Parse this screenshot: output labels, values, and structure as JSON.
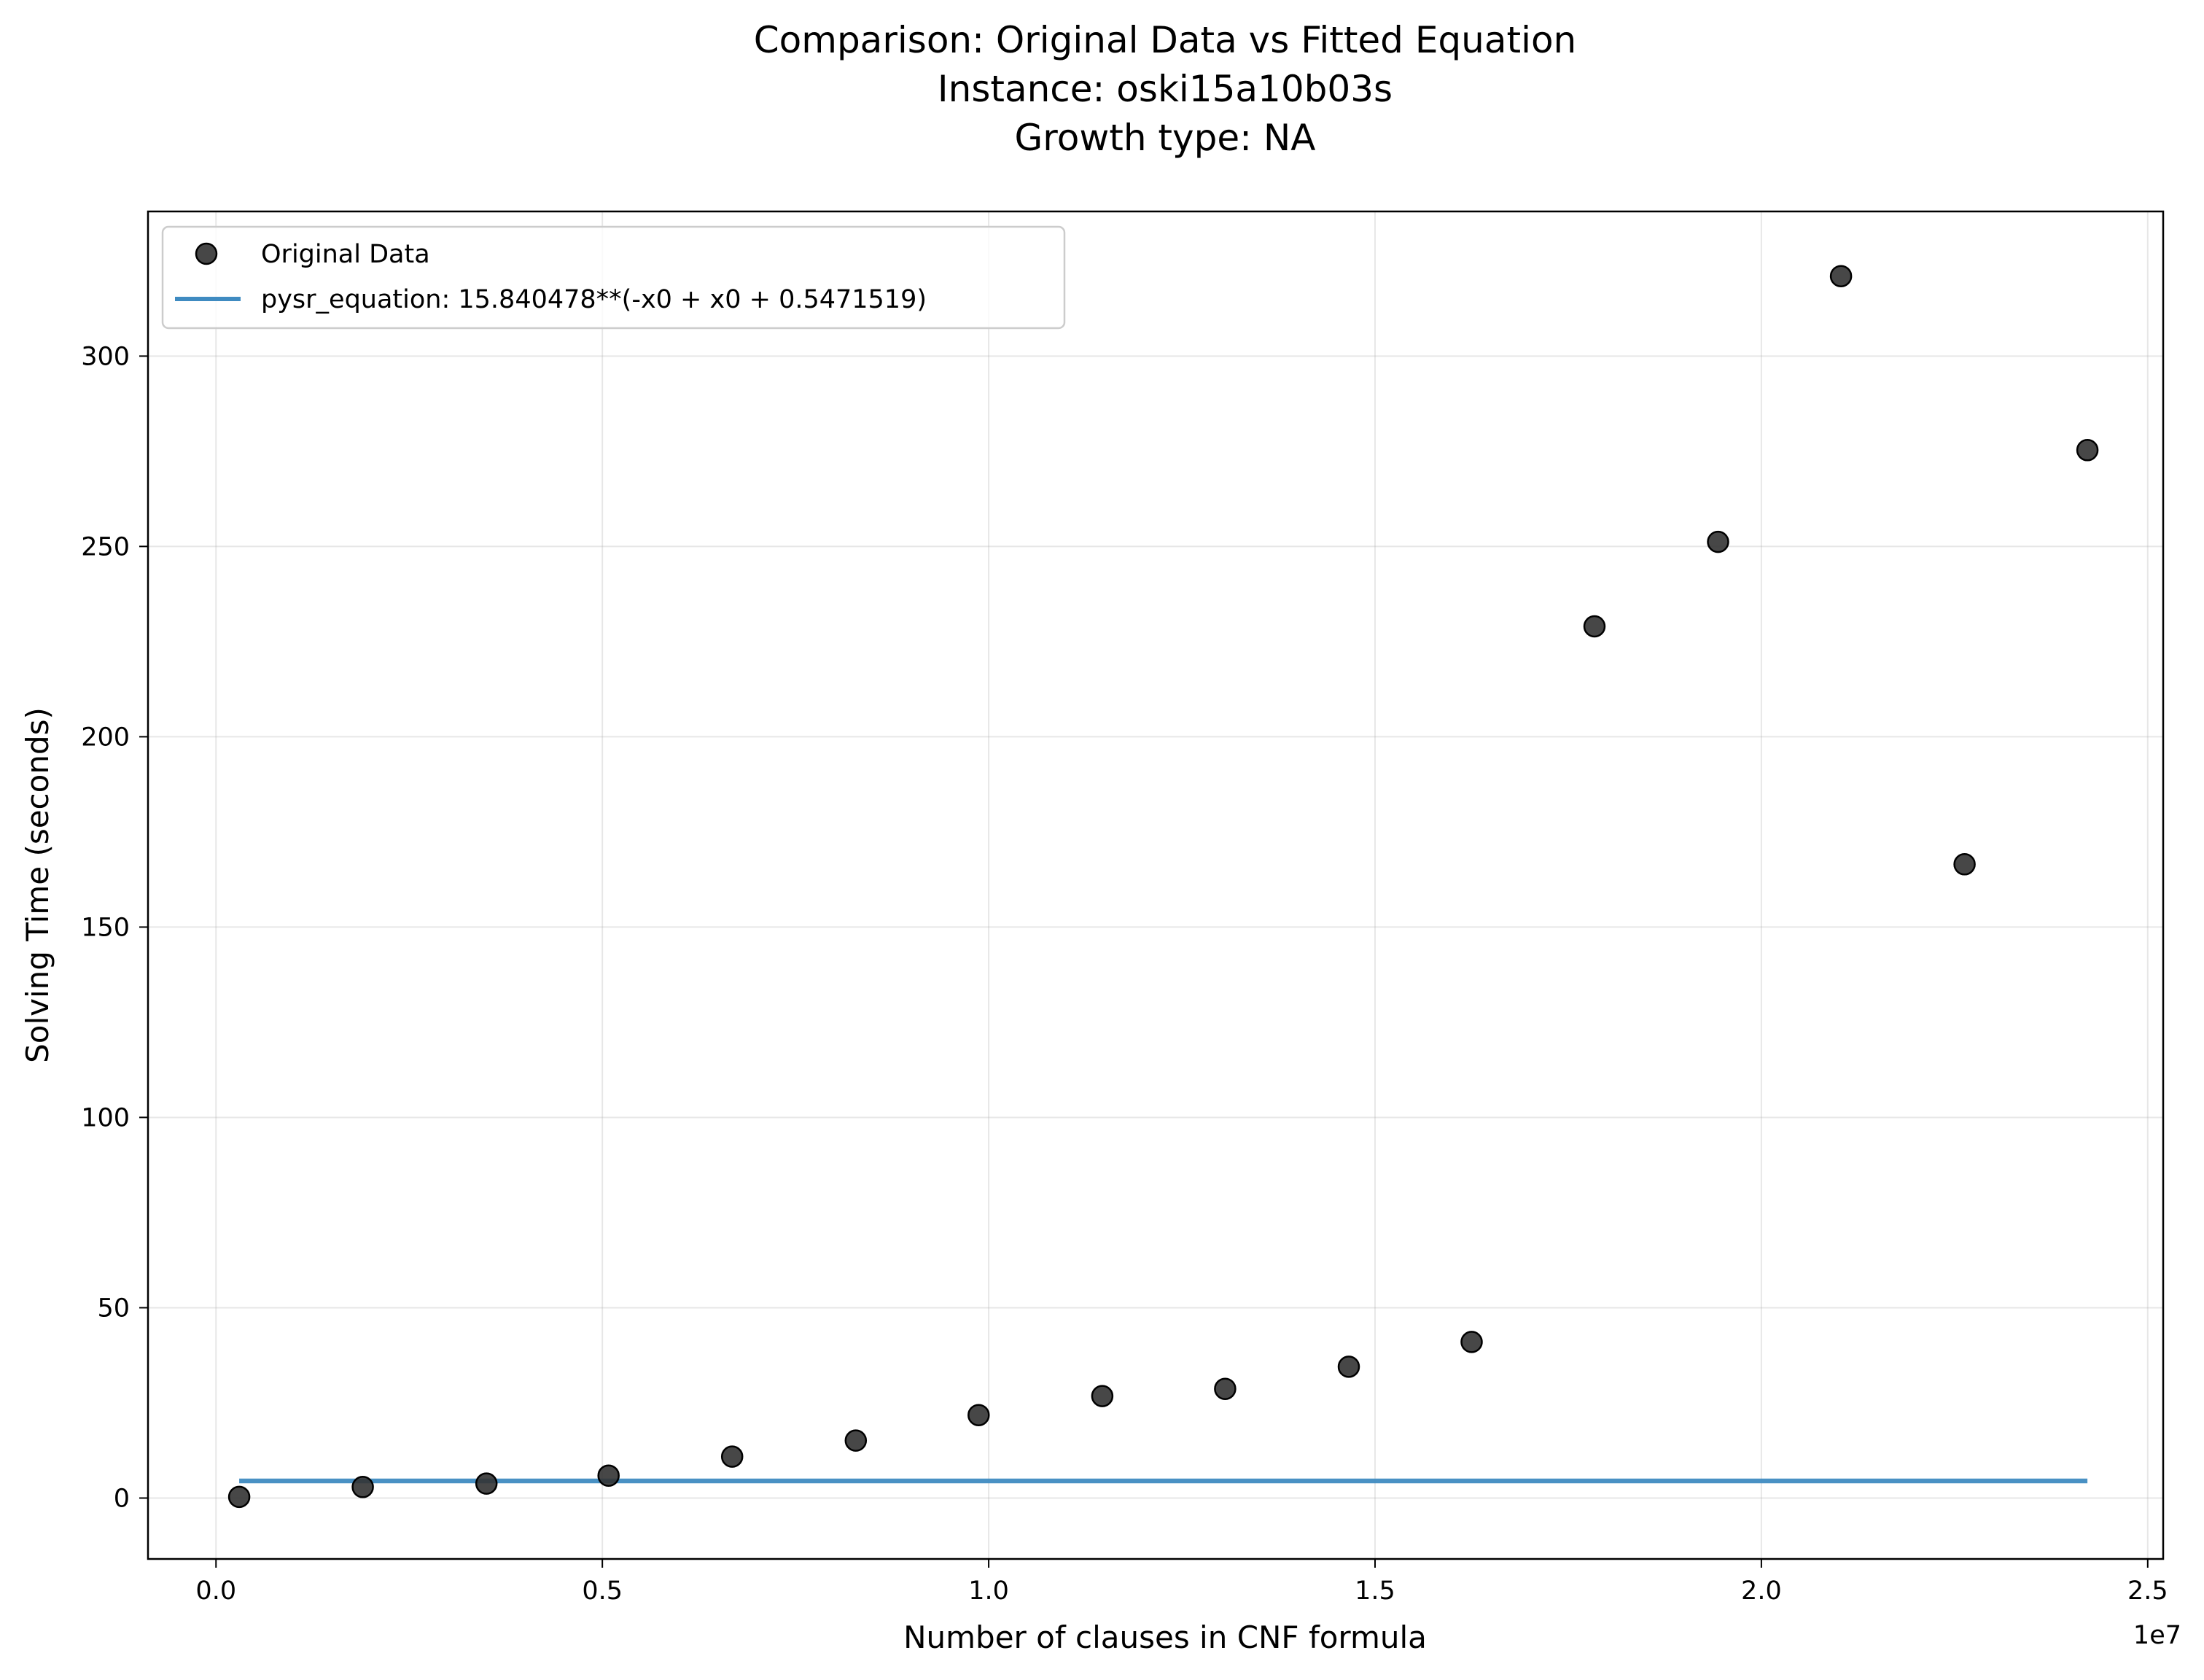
{
  "chart_data": {
    "type": "scatter",
    "title_lines": [
      "Comparison: Original Data vs Fitted Equation",
      "Instance: oski15a10b03s",
      "Growth type: NA"
    ],
    "xlabel": "Number of clauses in CNF formula",
    "ylabel": "Solving Time (seconds)",
    "x_offset_label": "1e7",
    "x_scale": 10000000,
    "xlim": [
      -880000,
      25200000
    ],
    "ylim": [
      -16,
      338
    ],
    "x_ticks": [
      0,
      5000000,
      10000000,
      15000000,
      20000000,
      25000000
    ],
    "x_tick_labels": [
      "0.0",
      "0.5",
      "1.0",
      "1.5",
      "2.0",
      "2.5"
    ],
    "y_ticks": [
      0,
      50,
      100,
      150,
      200,
      250,
      300
    ],
    "y_tick_labels": [
      "0",
      "50",
      "100",
      "150",
      "200",
      "250",
      "300"
    ],
    "grid": true,
    "legend_position": "top-left",
    "series": [
      {
        "name": "Original Data",
        "kind": "scatter",
        "color": "#333333",
        "x": [
          300000,
          1900000,
          3500000,
          5080000,
          6680000,
          8280000,
          9870000,
          11470000,
          13060000,
          14660000,
          16250000,
          17840000,
          19440000,
          21030000,
          22630000,
          24220000
        ],
        "y": [
          0.3,
          2.9,
          3.8,
          5.9,
          10.9,
          15.1,
          21.8,
          26.8,
          28.7,
          34.5,
          41.0,
          229.0,
          251.2,
          321.0,
          166.5,
          275.3
        ]
      },
      {
        "name": "pysr_equation: 15.840478**(-x0 + x0 + 0.5471519)",
        "kind": "line",
        "color": "#3f8bc1",
        "x": [
          300000,
          24220000
        ],
        "y": [
          4.5,
          4.5
        ]
      }
    ]
  }
}
